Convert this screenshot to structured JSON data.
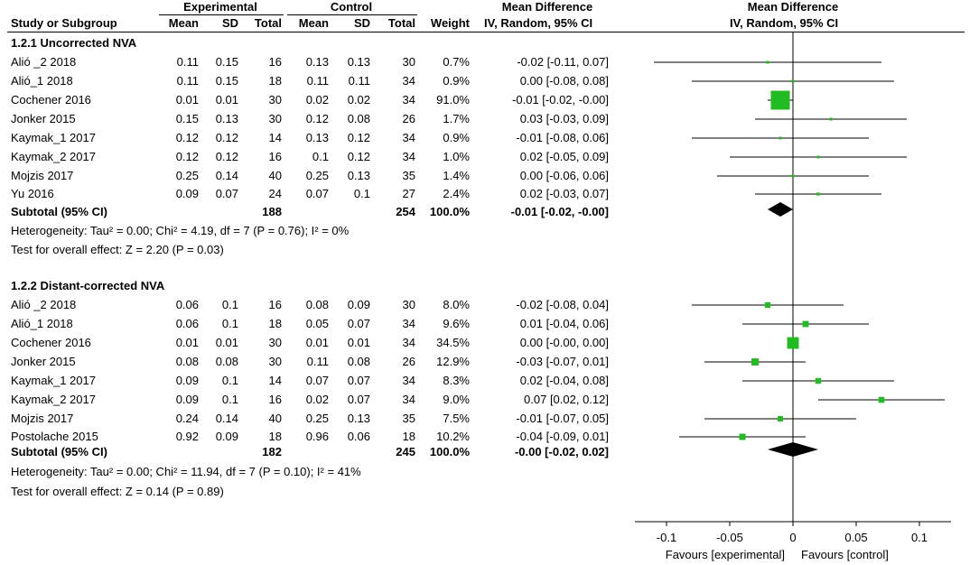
{
  "header": {
    "group_experimental": "Experimental",
    "group_control": "Control",
    "group_md": "Mean Difference",
    "group_md_plot": "Mean Difference",
    "col_study": "Study or Subgroup",
    "col_mean": "Mean",
    "col_sd": "SD",
    "col_total": "Total",
    "col_weight": "Weight",
    "col_method": "IV, Random, 95% CI",
    "col_method_plot": "IV, Random, 95% CI"
  },
  "chart_data": {
    "type": "forest",
    "xlim": [
      -0.125,
      0.125
    ],
    "xticks": [
      -0.1,
      -0.05,
      0,
      0.05,
      0.1
    ],
    "xtick_labels": [
      "-0.1",
      "-0.05",
      "0",
      "0.05",
      "0.1"
    ],
    "xlabel_left": "Favours [experimental]",
    "xlabel_right": "Favours [control]",
    "groups": [
      {
        "title": "1.2.1 Uncorrected NVA",
        "studies": [
          {
            "name": "Alió _2 2018",
            "exp_mean": "0.11",
            "exp_sd": "0.15",
            "exp_total": "16",
            "ctl_mean": "0.13",
            "ctl_sd": "0.13",
            "ctl_total": "30",
            "weight": "0.7%",
            "ci_text": "-0.02 [-0.11, 0.07]",
            "md": -0.02,
            "lo": -0.11,
            "hi": 0.07,
            "w": 0.7
          },
          {
            "name": "Alió_1 2018",
            "exp_mean": "0.11",
            "exp_sd": "0.15",
            "exp_total": "18",
            "ctl_mean": "0.11",
            "ctl_sd": "0.11",
            "ctl_total": "34",
            "weight": "0.9%",
            "ci_text": "0.00 [-0.08, 0.08]",
            "md": 0.0,
            "lo": -0.08,
            "hi": 0.08,
            "w": 0.9
          },
          {
            "name": "Cochener 2016",
            "exp_mean": "0.01",
            "exp_sd": "0.01",
            "exp_total": "30",
            "ctl_mean": "0.02",
            "ctl_sd": "0.02",
            "ctl_total": "34",
            "weight": "91.0%",
            "ci_text": "-0.01 [-0.02, -0.00]",
            "md": -0.01,
            "lo": -0.02,
            "hi": -0.0,
            "w": 91.0
          },
          {
            "name": "Jonker 2015",
            "exp_mean": "0.15",
            "exp_sd": "0.13",
            "exp_total": "30",
            "ctl_mean": "0.12",
            "ctl_sd": "0.08",
            "ctl_total": "26",
            "weight": "1.7%",
            "ci_text": "0.03 [-0.03, 0.09]",
            "md": 0.03,
            "lo": -0.03,
            "hi": 0.09,
            "w": 1.7
          },
          {
            "name": "Kaymak_1 2017",
            "exp_mean": "0.12",
            "exp_sd": "0.12",
            "exp_total": "14",
            "ctl_mean": "0.13",
            "ctl_sd": "0.12",
            "ctl_total": "34",
            "weight": "0.9%",
            "ci_text": "-0.01 [-0.08, 0.06]",
            "md": -0.01,
            "lo": -0.08,
            "hi": 0.06,
            "w": 0.9
          },
          {
            "name": "Kaymak_2 2017",
            "exp_mean": "0.12",
            "exp_sd": "0.12",
            "exp_total": "16",
            "ctl_mean": "0.1",
            "ctl_sd": "0.12",
            "ctl_total": "34",
            "weight": "1.0%",
            "ci_text": "0.02 [-0.05, 0.09]",
            "md": 0.02,
            "lo": -0.05,
            "hi": 0.09,
            "w": 1.0
          },
          {
            "name": "Mojzis 2017",
            "exp_mean": "0.25",
            "exp_sd": "0.14",
            "exp_total": "40",
            "ctl_mean": "0.25",
            "ctl_sd": "0.13",
            "ctl_total": "35",
            "weight": "1.4%",
            "ci_text": "0.00 [-0.06, 0.06]",
            "md": 0.0,
            "lo": -0.06,
            "hi": 0.06,
            "w": 1.4
          },
          {
            "name": "Yu 2016",
            "exp_mean": "0.09",
            "exp_sd": "0.07",
            "exp_total": "24",
            "ctl_mean": "0.07",
            "ctl_sd": "0.1",
            "ctl_total": "27",
            "weight": "2.4%",
            "ci_text": "0.02 [-0.03, 0.07]",
            "md": 0.02,
            "lo": -0.03,
            "hi": 0.07,
            "w": 2.4
          }
        ],
        "subtotal": {
          "label": "Subtotal (95% CI)",
          "exp_total": "188",
          "ctl_total": "254",
          "weight": "100.0%",
          "ci_text": "-0.01 [-0.02, -0.00]",
          "md": -0.01,
          "lo": -0.02,
          "hi": -0.0
        },
        "heterogeneity": "Heterogeneity: Tau² = 0.00; Chi² = 4.19, df = 7 (P = 0.76); I² = 0%",
        "overall": "Test for overall effect: Z = 2.20 (P = 0.03)"
      },
      {
        "title": "1.2.2 Distant-corrected NVA",
        "studies": [
          {
            "name": "Alió _2 2018",
            "exp_mean": "0.06",
            "exp_sd": "0.1",
            "exp_total": "16",
            "ctl_mean": "0.08",
            "ctl_sd": "0.09",
            "ctl_total": "30",
            "weight": "8.0%",
            "ci_text": "-0.02 [-0.08, 0.04]",
            "md": -0.02,
            "lo": -0.08,
            "hi": 0.04,
            "w": 8.0
          },
          {
            "name": "Alió_1 2018",
            "exp_mean": "0.06",
            "exp_sd": "0.1",
            "exp_total": "18",
            "ctl_mean": "0.05",
            "ctl_sd": "0.07",
            "ctl_total": "34",
            "weight": "9.6%",
            "ci_text": "0.01 [-0.04, 0.06]",
            "md": 0.01,
            "lo": -0.04,
            "hi": 0.06,
            "w": 9.6
          },
          {
            "name": "Cochener 2016",
            "exp_mean": "0.01",
            "exp_sd": "0.01",
            "exp_total": "30",
            "ctl_mean": "0.01",
            "ctl_sd": "0.01",
            "ctl_total": "34",
            "weight": "34.5%",
            "ci_text": "0.00 [-0.00, 0.00]",
            "md": 0.0,
            "lo": -0.0,
            "hi": 0.0,
            "w": 34.5
          },
          {
            "name": "Jonker 2015",
            "exp_mean": "0.08",
            "exp_sd": "0.08",
            "exp_total": "30",
            "ctl_mean": "0.11",
            "ctl_sd": "0.08",
            "ctl_total": "26",
            "weight": "12.9%",
            "ci_text": "-0.03 [-0.07, 0.01]",
            "md": -0.03,
            "lo": -0.07,
            "hi": 0.01,
            "w": 12.9
          },
          {
            "name": "Kaymak_1 2017",
            "exp_mean": "0.09",
            "exp_sd": "0.1",
            "exp_total": "14",
            "ctl_mean": "0.07",
            "ctl_sd": "0.07",
            "ctl_total": "34",
            "weight": "8.3%",
            "ci_text": "0.02 [-0.04, 0.08]",
            "md": 0.02,
            "lo": -0.04,
            "hi": 0.08,
            "w": 8.3
          },
          {
            "name": "Kaymak_2 2017",
            "exp_mean": "0.09",
            "exp_sd": "0.1",
            "exp_total": "16",
            "ctl_mean": "0.02",
            "ctl_sd": "0.07",
            "ctl_total": "34",
            "weight": "9.0%",
            "ci_text": "0.07 [0.02, 0.12]",
            "md": 0.07,
            "lo": 0.02,
            "hi": 0.12,
            "w": 9.0
          },
          {
            "name": "Mojzis 2017",
            "exp_mean": "0.24",
            "exp_sd": "0.14",
            "exp_total": "40",
            "ctl_mean": "0.25",
            "ctl_sd": "0.13",
            "ctl_total": "35",
            "weight": "7.5%",
            "ci_text": "-0.01 [-0.07, 0.05]",
            "md": -0.01,
            "lo": -0.07,
            "hi": 0.05,
            "w": 7.5
          },
          {
            "name": "Postolache 2015",
            "exp_mean": "0.92",
            "exp_sd": "0.09",
            "exp_total": "18",
            "ctl_mean": "0.96",
            "ctl_sd": "0.06",
            "ctl_total": "18",
            "weight": "10.2%",
            "ci_text": "-0.04 [-0.09, 0.01]",
            "md": -0.04,
            "lo": -0.09,
            "hi": 0.01,
            "w": 10.2
          }
        ],
        "subtotal": {
          "label": "Subtotal (95% CI)",
          "exp_total": "182",
          "ctl_total": "245",
          "weight": "100.0%",
          "ci_text": "-0.00 [-0.02, 0.02]",
          "md": -0.0,
          "lo": -0.02,
          "hi": 0.02
        },
        "heterogeneity": "Heterogeneity: Tau² = 0.00; Chi² = 11.94, df = 7 (P = 0.10); I² = 41%",
        "overall": "Test for overall effect: Z = 0.14 (P = 0.89)"
      }
    ]
  },
  "colors": {
    "study_marker": "#22bb22",
    "summary_diamond": "#000000",
    "lines": "#000000"
  }
}
